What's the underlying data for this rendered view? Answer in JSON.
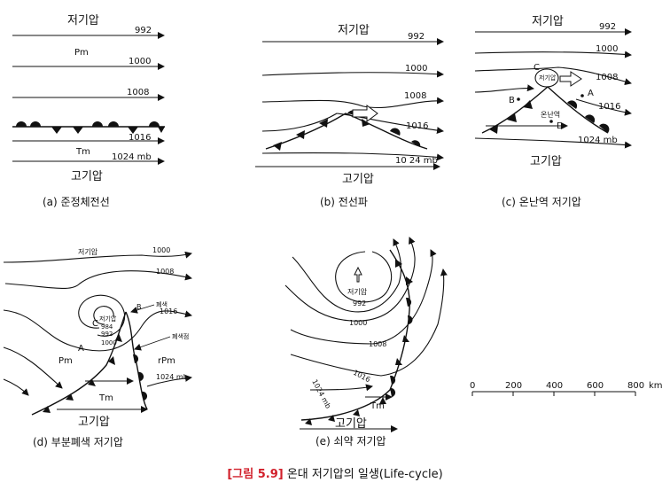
{
  "panels": {
    "a": {
      "low": "저기압",
      "high": "고기압",
      "caption": "(a) 준정체전선",
      "iso": [
        "992",
        "1000",
        "1008",
        "1016",
        "1024 mb"
      ],
      "air": [
        "Pm",
        "Tm"
      ]
    },
    "b": {
      "low": "저기압",
      "high": "고기압",
      "caption": "(b) 전선파",
      "iso": [
        "992",
        "1000",
        "1008",
        "1016",
        "10 24 mb"
      ]
    },
    "c": {
      "low": "저기압",
      "high": "고기압",
      "caption": "(c) 온난역 저기압",
      "iso": [
        "992",
        "1000",
        "1008",
        "1016",
        "1024 mb"
      ],
      "points": [
        "C",
        "A",
        "B",
        "D"
      ],
      "center": "저기압",
      "warm": "온난역"
    },
    "d": {
      "low": "저기압",
      "high": "고기압",
      "caption": "(d) 부분폐색 저기압",
      "iso": [
        "1000",
        "1008",
        "1016",
        "1024 mb"
      ],
      "points": [
        "B",
        "A",
        "C"
      ],
      "center": [
        "저기압",
        "984",
        "992",
        "1000"
      ],
      "occ": [
        "폐색",
        "폐색점"
      ],
      "air": [
        "Pm",
        "rPm",
        "Tm"
      ]
    },
    "e": {
      "low": "저기압",
      "high": "고기압",
      "caption": "(e) 쇠약 저기압",
      "iso": [
        "992",
        "1000",
        "1008",
        "1016",
        "1024 mb"
      ],
      "air": [
        "Tm"
      ]
    }
  },
  "scale": {
    "ticks": [
      "0",
      "200",
      "400",
      "600",
      "800"
    ],
    "unit": "km"
  },
  "caption": {
    "fig_no": "[그림 5.9]",
    "text": " 온대 저기압의 일생(Life-cycle)"
  }
}
